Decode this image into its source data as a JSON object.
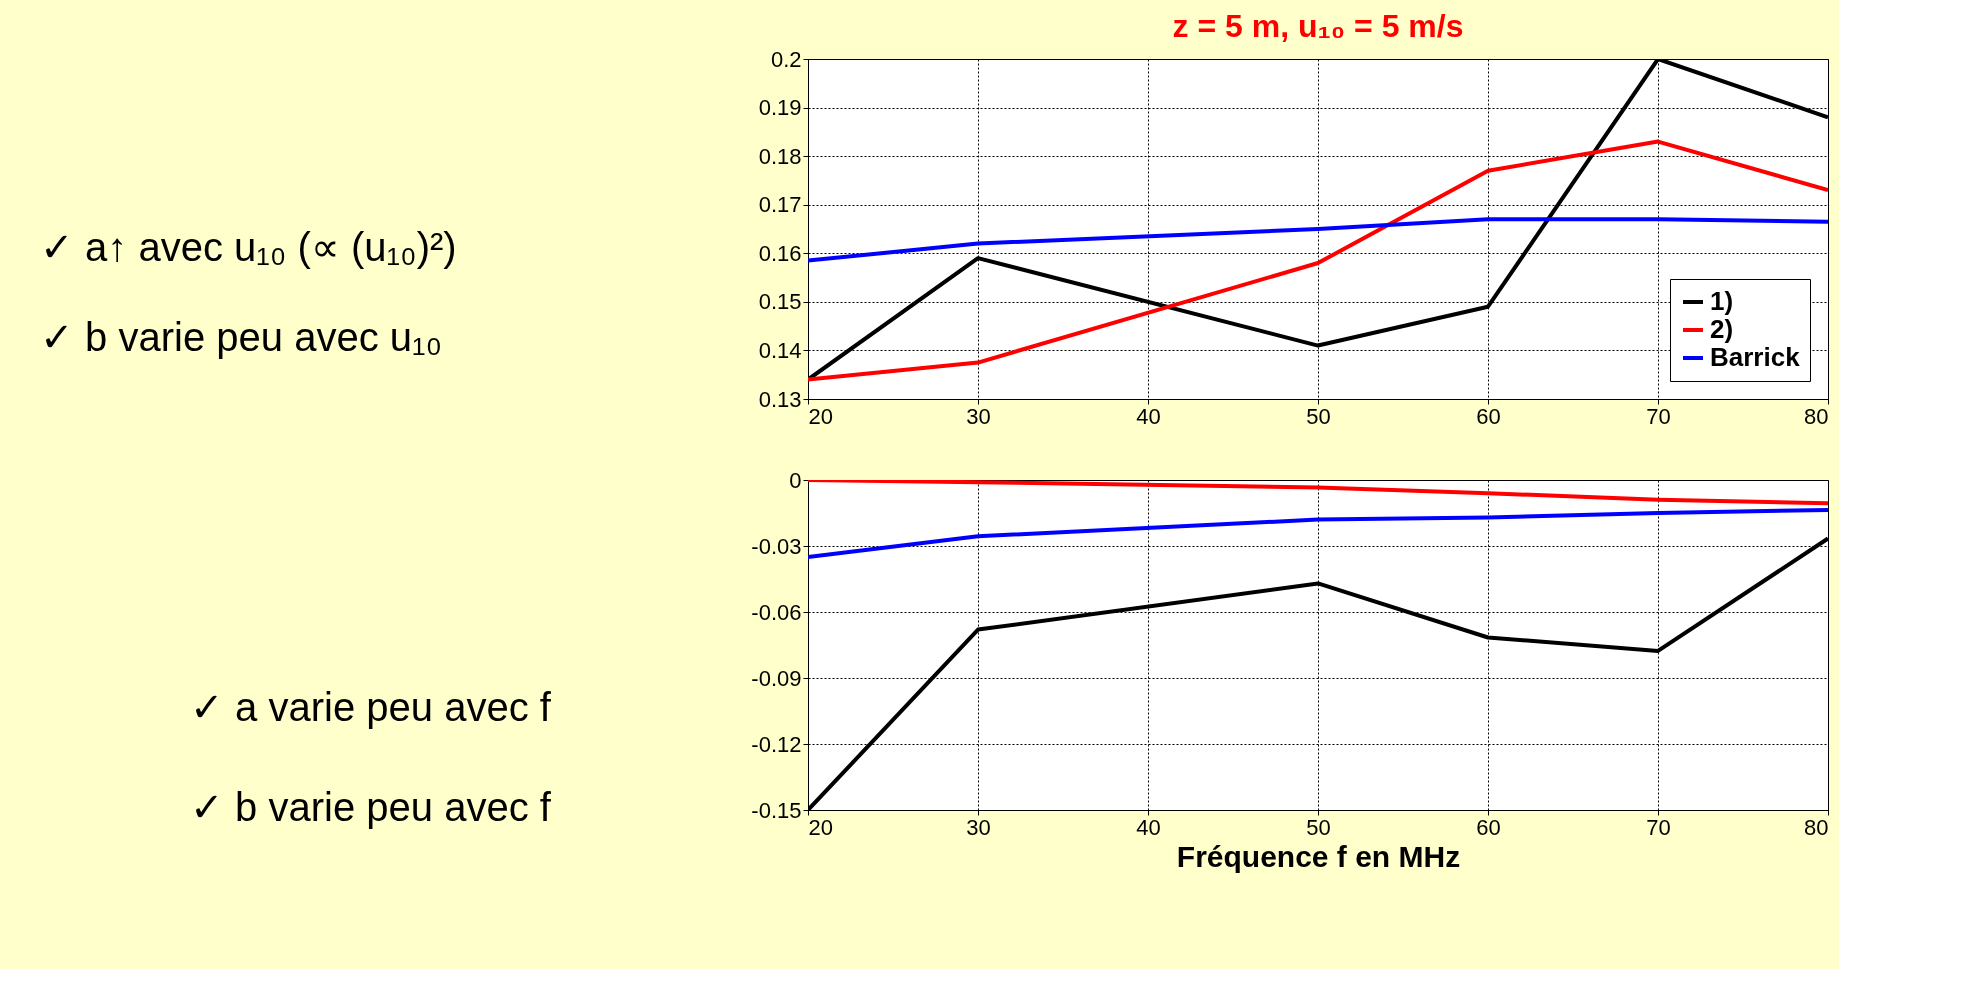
{
  "chart_data": [
    {
      "type": "line",
      "title": "z = 5 m, u₁₀ = 5 m/s",
      "x": [
        20,
        30,
        50,
        60,
        70,
        80
      ],
      "xlim": [
        20,
        80
      ],
      "xticks": [
        20,
        30,
        40,
        50,
        60,
        70,
        80
      ],
      "ylim": [
        0.13,
        0.2
      ],
      "yticks": [
        0.13,
        0.14,
        0.15,
        0.16,
        0.17,
        0.18,
        0.19,
        0.2
      ],
      "grid": true,
      "legend": "bottom right",
      "line_style": "solid",
      "marker": "none",
      "series": [
        {
          "name": "1)",
          "color": "#000000",
          "values": [
            0.134,
            0.159,
            0.141,
            0.149,
            0.2,
            0.188
          ]
        },
        {
          "name": "2)",
          "color": "#ff0000",
          "values": [
            0.134,
            0.1375,
            0.158,
            0.177,
            0.183,
            0.173
          ]
        },
        {
          "name": "Barrick",
          "color": "#0000ff",
          "values": [
            0.1585,
            0.162,
            0.165,
            0.167,
            0.167,
            0.1665
          ]
        }
      ],
      "annotations": [
        "✓ a↑ avec u₁₀ (∝ (u₁₀)²)",
        "✓ b varie peu avec  u₁₀",
        "✓ a varie peu avec f",
        "✓ b varie peu avec f"
      ]
    },
    {
      "type": "line",
      "xlabel": "Fréquence f en MHz",
      "x": [
        20,
        30,
        50,
        60,
        70,
        80
      ],
      "xlim": [
        20,
        80
      ],
      "xticks": [
        20,
        30,
        40,
        50,
        60,
        70,
        80
      ],
      "ylim": [
        -0.15,
        0
      ],
      "yticks": [
        -0.15,
        -0.12,
        -0.09,
        -0.06,
        -0.03,
        0
      ],
      "grid": true,
      "legend": false,
      "line_style": "solid",
      "marker": "none",
      "series": [
        {
          "color": "#000000",
          "values": [
            -0.15,
            -0.068,
            -0.047,
            -0.0716,
            -0.0777,
            -0.0266
          ]
        },
        {
          "color": "#ff0000",
          "values": [
            0,
            -0.001,
            -0.0034,
            -0.006,
            -0.009,
            -0.0106
          ]
        },
        {
          "color": "#0000ff",
          "values": [
            -0.035,
            -0.0256,
            -0.018,
            -0.017,
            -0.015,
            -0.0136
          ]
        }
      ]
    }
  ]
}
